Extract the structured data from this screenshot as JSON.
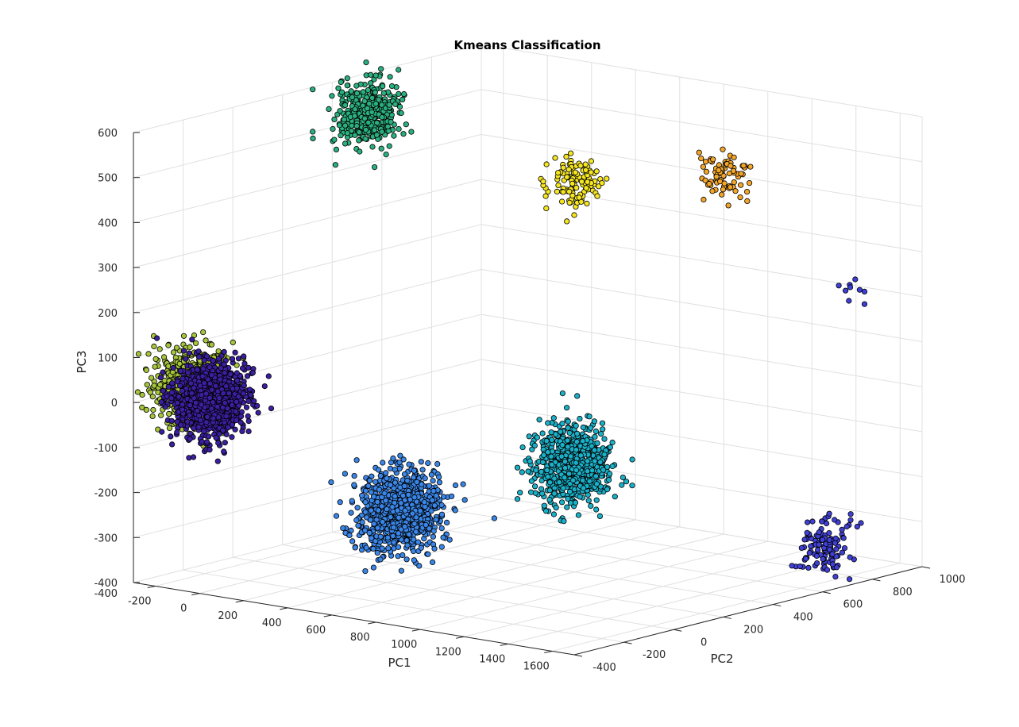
{
  "chart_data": {
    "type": "scatter",
    "title": "Kmeans Classification",
    "xlabel": "PC1",
    "ylabel": "PC2",
    "zlabel": "PC3",
    "xlim": [
      -300,
      1700
    ],
    "ylim": [
      -400,
      1000
    ],
    "zlim": [
      -400,
      600
    ],
    "x_ticks": [
      "-200",
      "0",
      "200",
      "400",
      "600",
      "800",
      "1000",
      "1200",
      "1400",
      "1600"
    ],
    "y_ticks": [
      "-400",
      "-200",
      "0",
      "200",
      "400",
      "600",
      "800",
      "1000"
    ],
    "z_ticks": [
      "600",
      "500",
      "400",
      "300",
      "200",
      "100",
      "0",
      "-100",
      "-200",
      "-300",
      "-400"
    ],
    "grid": true,
    "legend": "none",
    "series": [
      {
        "color": "#2ab07f",
        "center": [
          -250,
          500,
          520
        ],
        "count": 380,
        "spread": 35
      },
      {
        "color": "#f5e61f",
        "center": [
          300,
          850,
          360
        ],
        "count": 120,
        "spread": 30
      },
      {
        "color": "#f4a62a",
        "center": [
          800,
          1000,
          390
        ],
        "count": 80,
        "spread": 28
      },
      {
        "color": "#3d3fd8",
        "center": [
          1500,
          900,
          200
        ],
        "count": 9,
        "spread": 22
      },
      {
        "color": "#a6c53a",
        "center": [
          -150,
          -300,
          40
        ],
        "count": 500,
        "spread": 40
      },
      {
        "color": "#3b1fa0",
        "center": [
          -120,
          -250,
          0
        ],
        "count": 1000,
        "spread": 40
      },
      {
        "color": "#3a86e8",
        "center": [
          800,
          -300,
          -170
        ],
        "count": 900,
        "spread": 45
      },
      {
        "color": "#1ab0c8",
        "center": [
          900,
          300,
          -140
        ],
        "count": 700,
        "spread": 42
      },
      {
        "color": "#4040d6",
        "center": [
          1600,
          700,
          -320
        ],
        "count": 120,
        "spread": 28
      }
    ]
  }
}
